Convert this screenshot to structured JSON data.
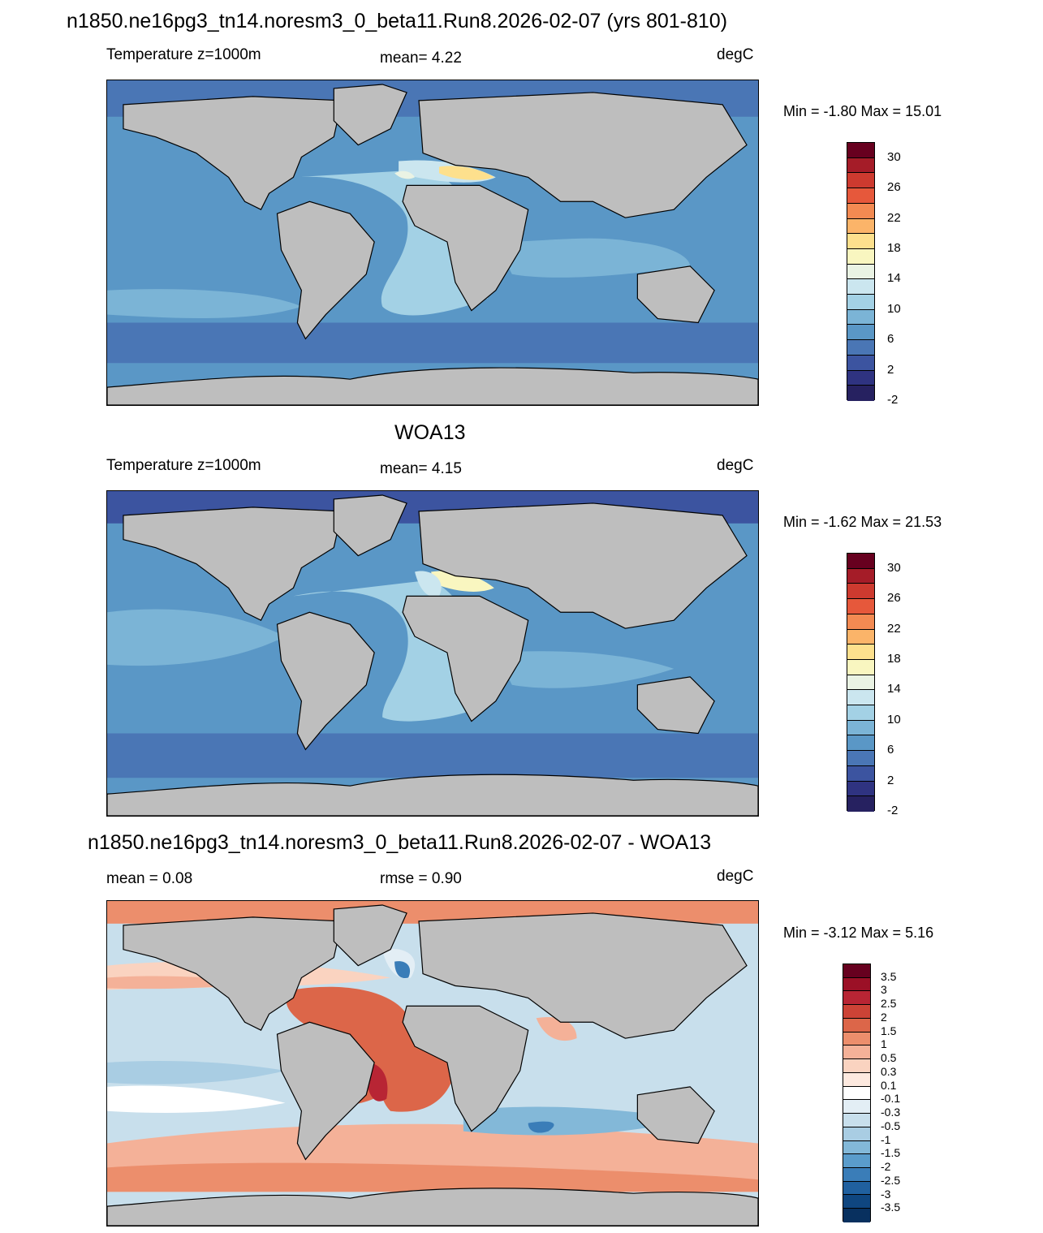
{
  "figure": {
    "title": "n1850.ne16pg3_tn14.noresm3_0_beta11.Run8.2026-02-07 (yrs 801-810)"
  },
  "panels": [
    {
      "id": "model",
      "heading": "",
      "left_label": "Temperature z=1000m",
      "center_label": "mean=   4.22",
      "units": "degC",
      "minmax": "Min =  -1.80 Max =  15.01",
      "colorbar_labels": [
        "30",
        "26",
        "22",
        "18",
        "14",
        "10",
        "6",
        "2",
        "-2"
      ]
    },
    {
      "id": "obs",
      "heading": "WOA13",
      "left_label": "Temperature z=1000m",
      "center_label": "mean=   4.15",
      "units": "degC",
      "minmax": "Min =  -1.62 Max =  21.53",
      "colorbar_labels": [
        "30",
        "26",
        "22",
        "18",
        "14",
        "10",
        "6",
        "2",
        "-2"
      ]
    },
    {
      "id": "diff",
      "heading": "n1850.ne16pg3_tn14.noresm3_0_beta11.Run8.2026-02-07 - WOA13",
      "left_label": "mean =   0.08",
      "center_label": "rmse =   0.90",
      "units": "degC",
      "minmax": "Min =  -3.12 Max =   5.16",
      "colorbar_labels": [
        "3.5",
        "3",
        "2.5",
        "2",
        "1.5",
        "1",
        "0.5",
        "0.3",
        "0.1",
        "-0.1",
        "-0.3",
        "-0.5",
        "-1",
        "-1.5",
        "-2",
        "-2.5",
        "-3",
        "-3.5"
      ]
    }
  ],
  "colors": {
    "land": "#bebebe",
    "temp_scale": [
      "#67001f",
      "#a51c28",
      "#cd3a2f",
      "#e6583b",
      "#f38a52",
      "#fbb469",
      "#fde08d",
      "#f9f6c0",
      "#eaf3e4",
      "#cbe6ef",
      "#a3d1e5",
      "#7bb4d6",
      "#5a97c6",
      "#4a76b5",
      "#3c54a0",
      "#2f3381",
      "#262160"
    ],
    "diff_scale": [
      "#67001f",
      "#9b1026",
      "#b82534",
      "#cc4336",
      "#dc6649",
      "#ec8e6c",
      "#f4b198",
      "#fad3c0",
      "#fde9df",
      "#ffffff",
      "#e3eef5",
      "#c8dfec",
      "#a9cde3",
      "#83b8d8",
      "#5a9ccb",
      "#3a7db8",
      "#20609f",
      "#0f4680",
      "#08305f"
    ]
  }
}
